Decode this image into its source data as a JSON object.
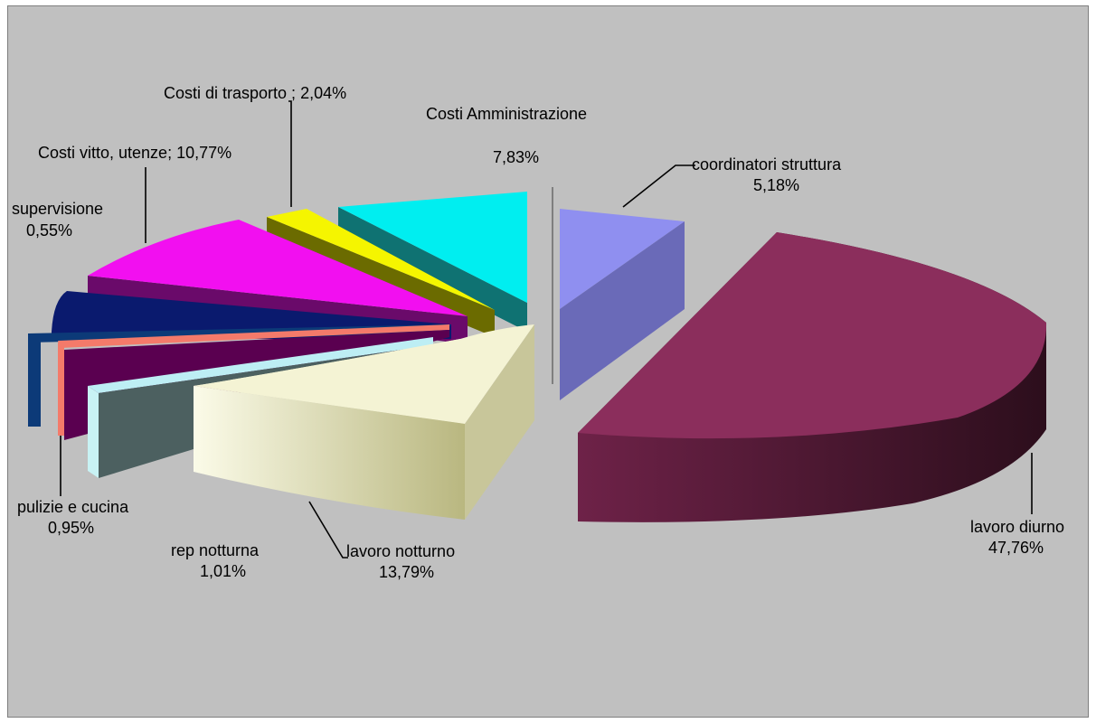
{
  "chart_data": {
    "type": "pie",
    "title": "",
    "style": "3d-exploded",
    "slices": [
      {
        "label": "lavoro diurno",
        "value_label": "47,76%",
        "value": 47.76,
        "color": "#8b2e5c"
      },
      {
        "label": "lavoro notturno",
        "value_label": "13,79%",
        "value": 13.79,
        "color": "#f1f0c8"
      },
      {
        "label": "rep notturna",
        "value_label": "1,01%",
        "value": 1.01,
        "color": "#c8f2f4"
      },
      {
        "label": "pulizie e cucina",
        "value_label": "0,95%",
        "value": 0.95,
        "color": "#f47a6a"
      },
      {
        "label": "supervisione",
        "value_label": "0,55%",
        "value": 0.55,
        "color": "#0c3a78"
      },
      {
        "label": "Costi vitto, utenze;",
        "value_label": "10,77%",
        "value": 10.77,
        "color": "#f20ff0"
      },
      {
        "label": "Costi di trasporto ;",
        "value_label": "2,04%",
        "value": 2.04,
        "color": "#f5f500"
      },
      {
        "label": "Costi Amministrazione",
        "value_label": "7,83%",
        "value": 7.83,
        "color": "#00eef0"
      },
      {
        "label": "coordinatori struttura",
        "value_label": "5,18%",
        "value": 5.18,
        "color": "#8f8ff0"
      }
    ]
  }
}
